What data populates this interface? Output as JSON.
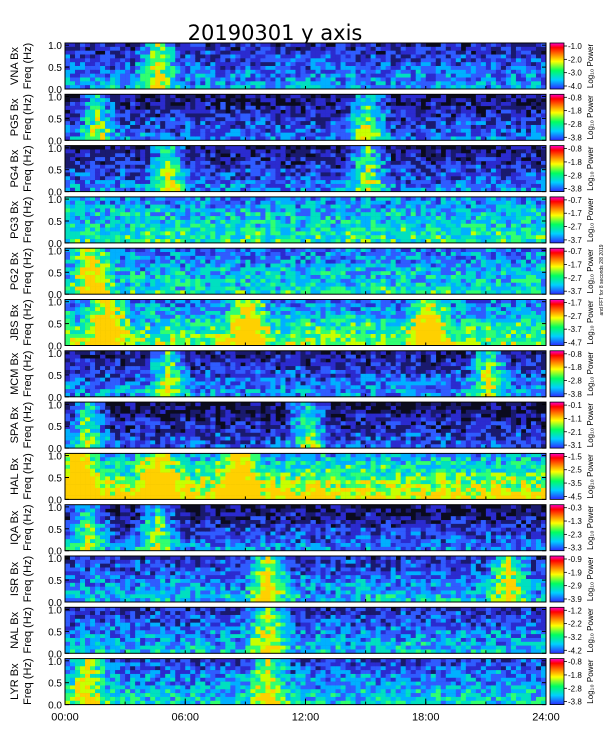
{
  "chart_data": {
    "type": "heatmap",
    "title": "20190301  y axis",
    "x_tick_labels": [
      "00:00",
      "06:00",
      "12:00",
      "18:00",
      "24:00"
    ],
    "x_range_hours": [
      0,
      24
    ],
    "y_range_hz": [
      0,
      1.05
    ],
    "y_tick_labels": [
      "0.0",
      "0.5",
      "1.0"
    ],
    "ylabel_suffix": "Bx",
    "ylabel_units": "Freq (Hz)",
    "colorbar_label": "Log₁₀ Power",
    "colorbar_colors": [
      "#2b2bff",
      "#00d0ff",
      "#00ff60",
      "#ffff00",
      "#ff8000",
      "#ff0000",
      "#ff00d0"
    ],
    "side_note": "and FFT for 8 seconds 2/8 2019",
    "panels": [
      {
        "station": "VNA",
        "cbar_ticks": [
          "-1.0",
          "-2.0",
          "-3.0",
          "-4.0"
        ]
      },
      {
        "station": "PG5",
        "cbar_ticks": [
          "-0.8",
          "-1.8",
          "-2.8",
          "-3.8"
        ]
      },
      {
        "station": "PG4",
        "cbar_ticks": [
          "-0.8",
          "-1.8",
          "-2.8",
          "-3.8"
        ]
      },
      {
        "station": "PG3",
        "cbar_ticks": [
          "-0.7",
          "-1.7",
          "-2.7",
          "-3.7"
        ]
      },
      {
        "station": "PG2",
        "cbar_ticks": [
          "-0.7",
          "-1.7",
          "-2.7",
          "-3.7"
        ]
      },
      {
        "station": "JBS",
        "cbar_ticks": [
          "-1.7",
          "-2.7",
          "-3.7",
          "-4.7"
        ]
      },
      {
        "station": "MCM",
        "cbar_ticks": [
          "-0.8",
          "-1.8",
          "-2.8",
          "-3.8"
        ]
      },
      {
        "station": "SPA",
        "cbar_ticks": [
          "-0.1",
          "-1.1",
          "-2.1",
          "-3.1"
        ]
      },
      {
        "station": "HAL",
        "cbar_ticks": [
          "-1.5",
          "-2.5",
          "-3.5",
          "-4.5"
        ]
      },
      {
        "station": "IQA",
        "cbar_ticks": [
          "-0.3",
          "-1.3",
          "-2.3",
          "-3.3"
        ]
      },
      {
        "station": "ISR",
        "cbar_ticks": [
          "-0.9",
          "-1.9",
          "-2.9",
          "-3.9"
        ]
      },
      {
        "station": "NAL",
        "cbar_ticks": [
          "-1.2",
          "-2.2",
          "-3.2",
          "-4.2"
        ]
      },
      {
        "station": "LYR",
        "cbar_ticks": [
          "-0.8",
          "-1.8",
          "-2.8",
          "-3.8"
        ]
      }
    ]
  }
}
